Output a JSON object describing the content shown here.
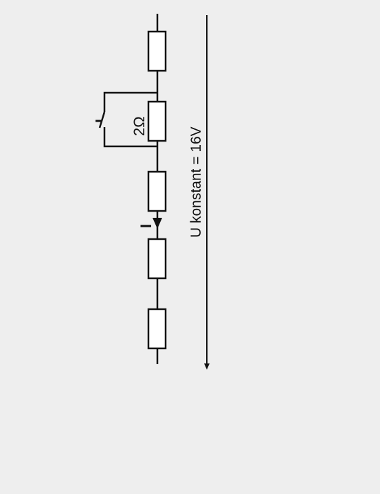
{
  "diagram": {
    "resistor_label": "2Ω",
    "current_label": "I",
    "voltage_label": "U konstant = 16V",
    "colors": {
      "background": "#eeeeee",
      "stroke": "#111111",
      "resistor_fill": "#ffffff"
    }
  }
}
